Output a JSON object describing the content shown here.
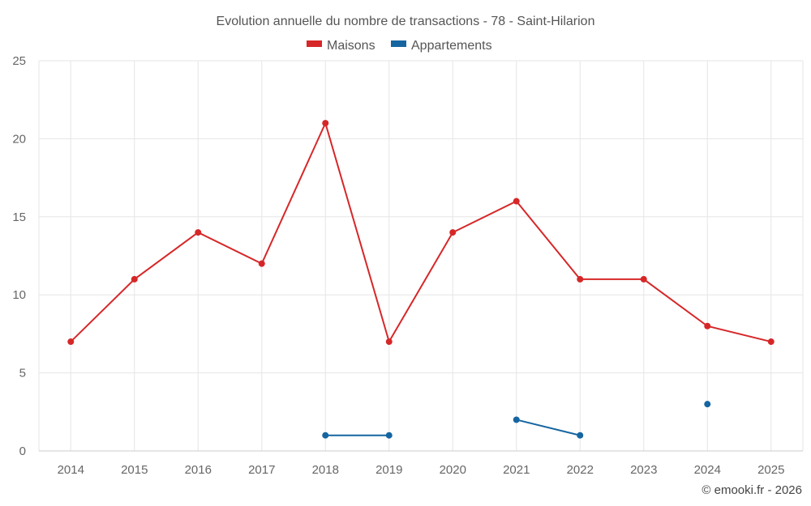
{
  "chart_data": {
    "type": "line",
    "title": "Evolution annuelle du nombre de transactions - 78 - Saint-Hilarion",
    "categories": [
      "2014",
      "2015",
      "2016",
      "2017",
      "2018",
      "2019",
      "2020",
      "2021",
      "2022",
      "2023",
      "2024",
      "2025"
    ],
    "series": [
      {
        "name": "Maisons",
        "color": "#d62728",
        "values": [
          7,
          11,
          14,
          12,
          21,
          7,
          14,
          16,
          11,
          11,
          8,
          7
        ]
      },
      {
        "name": "Appartements",
        "color": "#1565a0",
        "values": [
          null,
          null,
          null,
          null,
          1,
          1,
          null,
          2,
          1,
          null,
          3,
          null
        ]
      }
    ],
    "ylim": [
      0,
      25
    ],
    "yticks": [
      0,
      5,
      10,
      15,
      20,
      25
    ],
    "xlabel": "",
    "ylabel": "",
    "grid": true,
    "legend_position": "top-center"
  },
  "credit": "© emooki.fr - 2026"
}
